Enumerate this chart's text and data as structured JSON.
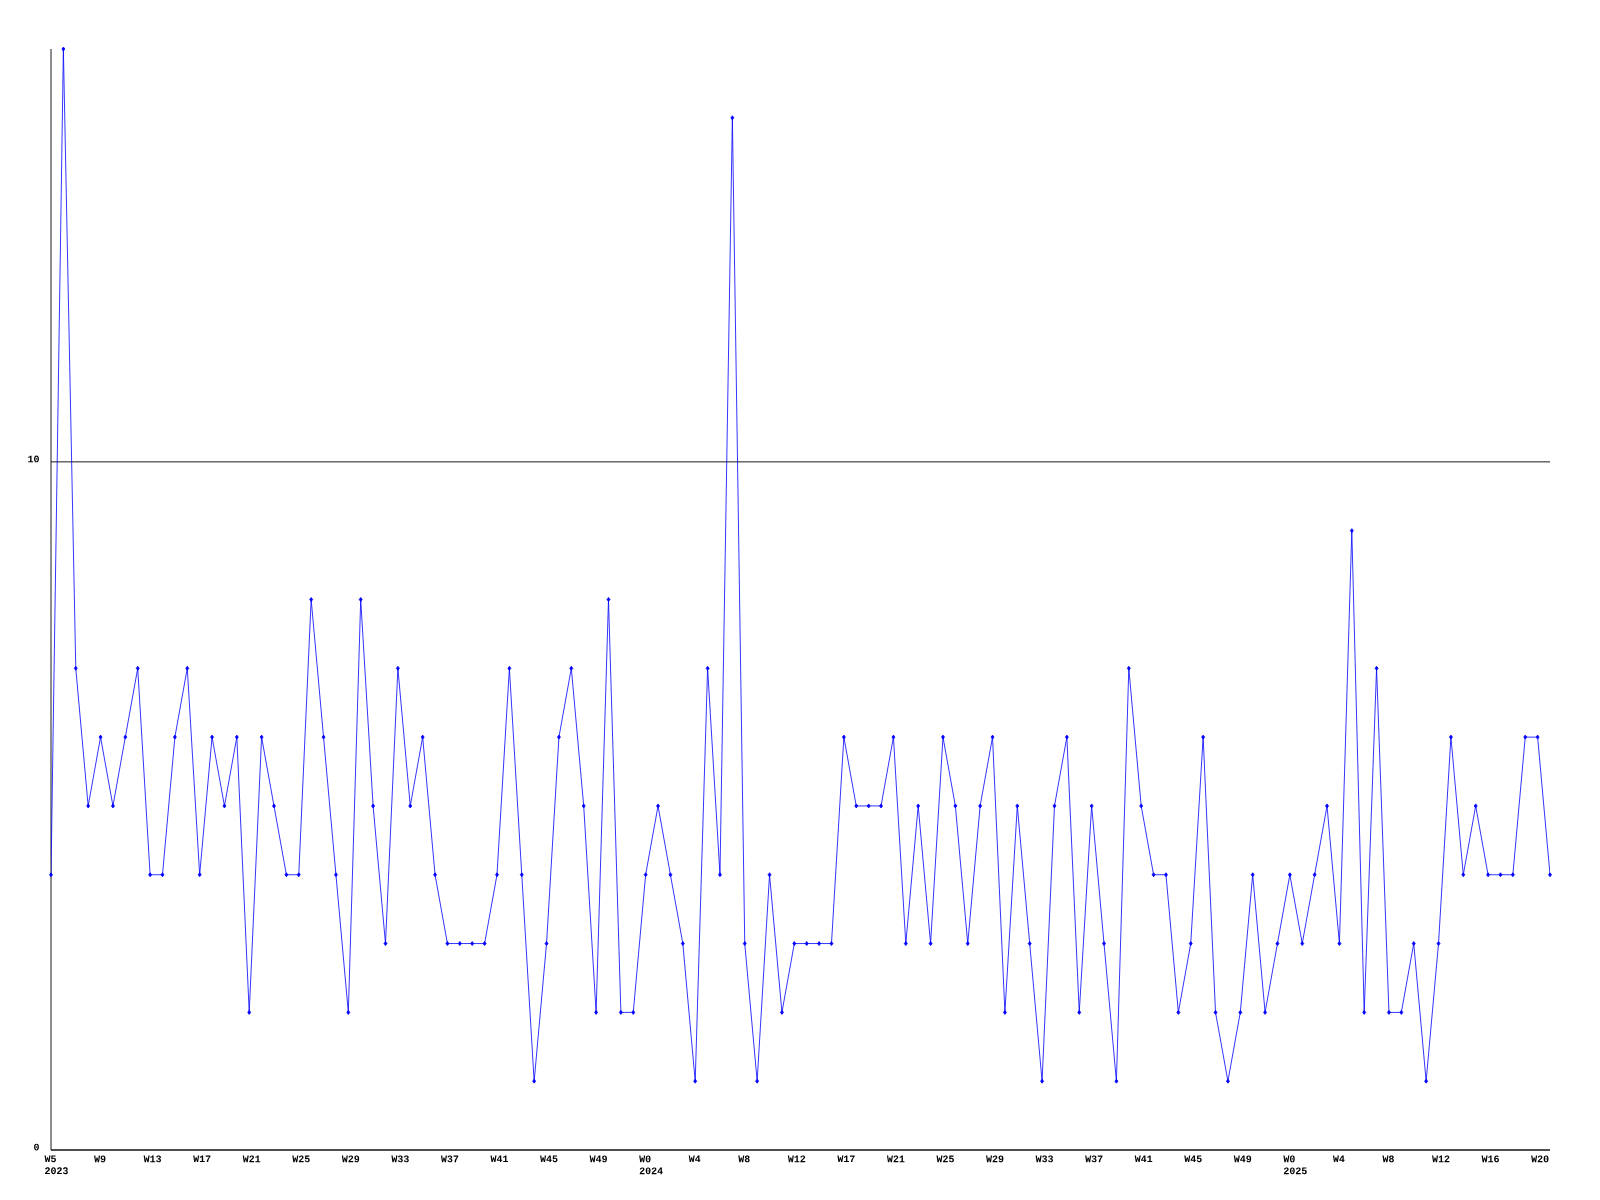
{
  "chart_data": {
    "type": "line",
    "color": "#0000ff",
    "marker": "diamond",
    "grid": "y",
    "ylim": [
      0,
      16
    ],
    "yticks": [
      0,
      10
    ],
    "categories": [
      "W5 2023",
      null,
      null,
      null,
      "W9",
      null,
      null,
      null,
      "W13",
      null,
      null,
      null,
      "W17",
      null,
      null,
      null,
      "W21",
      null,
      null,
      null,
      "W25",
      null,
      null,
      null,
      "W29",
      null,
      null,
      null,
      "W33",
      null,
      null,
      null,
      "W37",
      null,
      null,
      null,
      "W41",
      null,
      null,
      null,
      "W45",
      null,
      null,
      null,
      "W49",
      null,
      null,
      null,
      "W0 2024",
      null,
      null,
      null,
      "W4",
      null,
      null,
      null,
      "W8",
      null,
      null,
      null,
      "W12",
      null,
      null,
      null,
      "W17",
      null,
      null,
      null,
      "W21",
      null,
      null,
      null,
      "W25",
      null,
      null,
      null,
      "W29",
      null,
      null,
      null,
      "W33",
      null,
      null,
      null,
      "W37",
      null,
      null,
      null,
      "W41",
      null,
      null,
      null,
      "W45",
      null,
      null,
      null,
      "W49",
      null,
      null,
      null,
      "W0 2025",
      null,
      null,
      null,
      "W4",
      null,
      null,
      null,
      "W8",
      null,
      null,
      null,
      "W12",
      null,
      null,
      null,
      "W16",
      null,
      null,
      null,
      "W20",
      null
    ],
    "values": [
      4,
      16,
      7,
      5,
      6,
      5,
      6,
      7,
      4,
      4,
      6,
      7,
      4,
      6,
      5,
      6,
      2,
      6,
      5,
      4,
      4,
      8,
      6,
      4,
      2,
      8,
      5,
      3,
      7,
      5,
      6,
      4,
      3,
      3,
      3,
      3,
      4,
      7,
      4,
      1,
      3,
      6,
      7,
      5,
      2,
      8,
      2,
      2,
      4,
      5,
      4,
      3,
      1,
      7,
      4,
      15,
      3,
      1,
      4,
      2,
      3,
      3,
      3,
      3,
      6,
      5,
      5,
      5,
      6,
      3,
      5,
      3,
      6,
      5,
      3,
      5,
      6,
      2,
      5,
      3,
      1,
      5,
      6,
      2,
      5,
      3,
      1,
      7,
      5,
      4,
      4,
      2,
      3,
      6,
      2,
      1,
      2,
      4,
      2,
      3,
      4,
      3,
      4,
      5,
      3,
      9,
      2,
      7,
      2,
      2,
      3,
      1,
      3,
      6,
      4,
      5,
      4,
      4,
      4,
      6,
      6,
      4
    ]
  }
}
